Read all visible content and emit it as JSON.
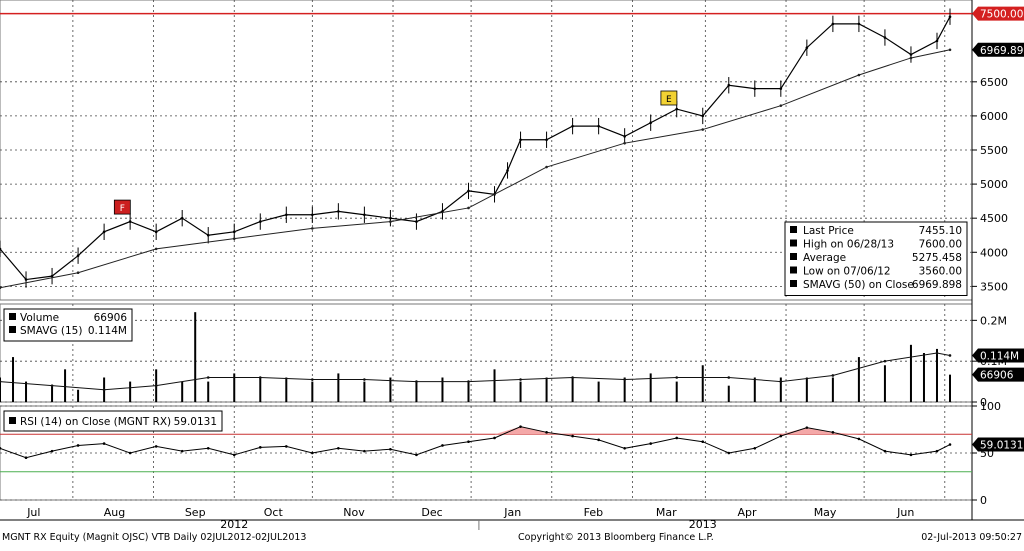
{
  "colors": {
    "background": "#ffffff",
    "grid": "#444444",
    "price": "#000000",
    "sma": "#222222",
    "limit_line": "#d42020",
    "rsi_upper": "#c83232",
    "rsi_lower": "#4caf50",
    "rsi_fill": "#f4a8a8",
    "event_red": "#cc1f1f",
    "event_yellow": "#f2d233"
  },
  "icons": {
    "legend_filled": "filled-square-icon",
    "legend_high": "high-marker-icon",
    "legend_average": "average-marker-icon",
    "legend_low": "low-marker-icon"
  },
  "chart_data": [
    {
      "panel": "price",
      "type": "line",
      "ylim": [
        3300,
        7700
      ],
      "y_ticks": [
        3500,
        4000,
        4500,
        5000,
        5500,
        6000,
        6500
      ],
      "x_ticks": [
        "Jul",
        "Aug",
        "Sep",
        "Oct",
        "Nov",
        "Dec",
        "Jan",
        "Feb",
        "Mar",
        "Apr",
        "May",
        "Jun"
      ],
      "x_tick_days": [
        13,
        44,
        75,
        105,
        136,
        166,
        197,
        228,
        256,
        287,
        317,
        348
      ],
      "year_labels": [
        "2012",
        "2013"
      ],
      "year_label_days": [
        90,
        270
      ],
      "year_divider_day": 184,
      "series": [
        {
          "name": "Last Price",
          "x_days": [
            0,
            10,
            20,
            30,
            40,
            50,
            60,
            70,
            80,
            90,
            100,
            110,
            120,
            130,
            140,
            150,
            160,
            170,
            180,
            190,
            195,
            200,
            210,
            220,
            230,
            240,
            250,
            260,
            270,
            280,
            290,
            300,
            310,
            320,
            330,
            340,
            350,
            360,
            365
          ],
          "values": [
            4050,
            3600,
            3650,
            3950,
            4300,
            4450,
            4300,
            4500,
            4250,
            4300,
            4450,
            4550,
            4550,
            4600,
            4550,
            4500,
            4450,
            4600,
            4900,
            4850,
            5200,
            5650,
            5650,
            5850,
            5850,
            5700,
            5900,
            6100,
            6000,
            6450,
            6400,
            6400,
            7000,
            7350,
            7350,
            7150,
            6900,
            7100,
            7455
          ]
        },
        {
          "name": "SMAVG (50) on Close",
          "x_days": [
            0,
            30,
            60,
            90,
            120,
            150,
            180,
            210,
            240,
            270,
            300,
            330,
            350,
            365
          ],
          "values": [
            3480,
            3700,
            4050,
            4200,
            4350,
            4450,
            4650,
            5250,
            5600,
            5800,
            6150,
            6600,
            6850,
            6970
          ]
        }
      ],
      "horizontal_lines": [
        {
          "value": 7500,
          "label": "7500.00"
        }
      ],
      "value_tags": [
        {
          "label": "7500.00",
          "value": 7500,
          "style": "red"
        },
        {
          "label": "6969.898",
          "value": 6970,
          "style": "black"
        }
      ],
      "event_markers": [
        {
          "label": "F",
          "day": 47,
          "value": 4560,
          "color": "red"
        },
        {
          "label": "E",
          "day": 257,
          "value": 6160,
          "color": "yellow"
        }
      ],
      "legend": {
        "rows": [
          {
            "label": "Last Price",
            "value": "7455.10"
          },
          {
            "label": "High on 06/28/13",
            "value": "7600.00"
          },
          {
            "label": "Average",
            "value": "5275.458"
          },
          {
            "label": "Low on 07/06/12",
            "value": "3560.00"
          },
          {
            "label": "SMAVG (50) on Close",
            "value": "6969.898"
          }
        ]
      }
    },
    {
      "panel": "volume",
      "type": "bar",
      "ylim": [
        0,
        0.24
      ],
      "y_ticks": [
        0,
        0.1,
        0.2
      ],
      "y_tick_labels": [
        "0",
        "0.1M",
        "0.2M"
      ],
      "series": [
        {
          "name": "Volume",
          "x_days": [
            0,
            5,
            10,
            20,
            25,
            30,
            40,
            50,
            60,
            70,
            75,
            80,
            90,
            100,
            110,
            120,
            130,
            140,
            150,
            160,
            170,
            180,
            190,
            200,
            210,
            220,
            230,
            240,
            250,
            260,
            270,
            280,
            290,
            300,
            310,
            320,
            330,
            340,
            350,
            355,
            360,
            365
          ],
          "values": [
            0.06,
            0.11,
            0.05,
            0.04,
            0.08,
            0.03,
            0.06,
            0.05,
            0.08,
            0.05,
            0.22,
            0.05,
            0.07,
            0.06,
            0.06,
            0.05,
            0.07,
            0.05,
            0.06,
            0.05,
            0.06,
            0.05,
            0.08,
            0.05,
            0.06,
            0.06,
            0.05,
            0.06,
            0.07,
            0.05,
            0.09,
            0.04,
            0.06,
            0.06,
            0.06,
            0.06,
            0.11,
            0.09,
            0.14,
            0.12,
            0.13,
            0.067
          ]
        },
        {
          "name": "SMAVG (15)",
          "x_days": [
            0,
            20,
            40,
            60,
            80,
            100,
            120,
            140,
            160,
            180,
            200,
            220,
            240,
            260,
            280,
            300,
            320,
            340,
            360,
            365
          ],
          "values": [
            0.05,
            0.04,
            0.03,
            0.04,
            0.06,
            0.06,
            0.055,
            0.055,
            0.05,
            0.05,
            0.055,
            0.06,
            0.055,
            0.06,
            0.06,
            0.05,
            0.065,
            0.1,
            0.12,
            0.114
          ]
        }
      ],
      "value_tags": [
        {
          "label": "0.114M",
          "value": 0.114,
          "style": "black"
        },
        {
          "label": "66906",
          "value": 0.067,
          "style": "black"
        }
      ],
      "legend": {
        "rows": [
          {
            "label": "Volume",
            "value": "66906"
          },
          {
            "label": "SMAVG (15)",
            "value": "0.114M"
          }
        ]
      }
    },
    {
      "panel": "rsi",
      "type": "line",
      "ylim": [
        0,
        100
      ],
      "y_ticks": [
        0,
        50,
        100
      ],
      "overbought": 70,
      "oversold": 30,
      "series": [
        {
          "name": "RSI (14) on Close (MGNT RX)",
          "x_days": [
            0,
            10,
            20,
            30,
            40,
            50,
            60,
            70,
            80,
            90,
            100,
            110,
            120,
            130,
            140,
            150,
            160,
            170,
            180,
            190,
            200,
            210,
            220,
            230,
            240,
            250,
            260,
            270,
            280,
            290,
            300,
            310,
            320,
            330,
            340,
            350,
            360,
            365
          ],
          "values": [
            55,
            45,
            52,
            58,
            60,
            50,
            57,
            52,
            55,
            48,
            56,
            57,
            50,
            55,
            52,
            54,
            48,
            58,
            62,
            66,
            78,
            72,
            68,
            64,
            55,
            60,
            66,
            62,
            50,
            55,
            68,
            77,
            72,
            65,
            52,
            48,
            52,
            59
          ]
        }
      ],
      "value_tags": [
        {
          "label": "59.0131",
          "value": 59,
          "style": "black"
        }
      ],
      "legend": {
        "rows": [
          {
            "label": "RSI (14) on Close (MGNT RX)",
            "value": "59.0131"
          }
        ]
      }
    }
  ],
  "footer": {
    "left": "MGNT RX Equity (Magnit OJSC) VTB  Daily 02JUL2012-02JUL2013",
    "center": "Copyright© 2013 Bloomberg Finance L.P.",
    "right": "02-Jul-2013 09:50:27"
  }
}
